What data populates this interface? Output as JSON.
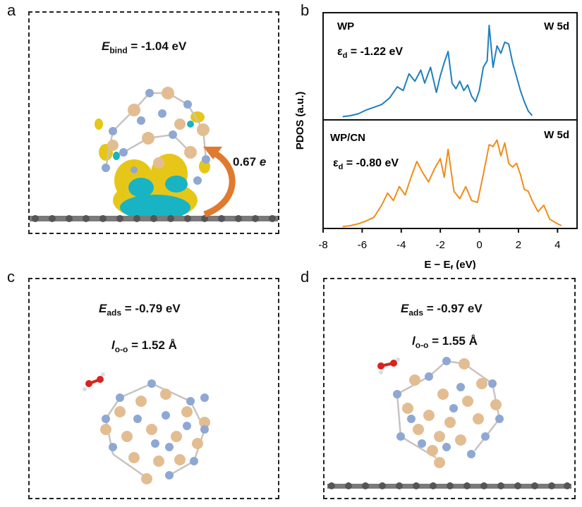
{
  "panels": {
    "a": {
      "letter": "a",
      "energy_symbol": "E",
      "energy_sub": "bind",
      "energy_value": "= -1.04 eV",
      "charge_value": "0.67",
      "charge_unit": "e"
    },
    "b": {
      "letter": "b",
      "top_label": "WP",
      "top_orbital": "W 5d",
      "top_eps_symbol": "ε",
      "top_eps_sub": "d",
      "top_eps_value": "= -1.22 eV",
      "bottom_label": "WP/CN",
      "bottom_orbital": "W 5d",
      "bottom_eps_symbol": "ε",
      "bottom_eps_sub": "d",
      "bottom_eps_value": "= -0.80 eV"
    },
    "c": {
      "letter": "c",
      "energy_symbol": "E",
      "energy_sub": "ads",
      "energy_value": "= -0.79 eV",
      "bond_symbol": "l",
      "bond_sub": "o-o",
      "bond_value": "= 1.52 Å"
    },
    "d": {
      "letter": "d",
      "energy_symbol": "E",
      "energy_sub": "ads",
      "energy_value": "= -0.97 eV",
      "bond_symbol": "l",
      "bond_sub": "o-o",
      "bond_value": "= 1.55 Å"
    }
  },
  "colors": {
    "wp_line": "#1f7fc0",
    "wpcn_line": "#f08c1a",
    "p_atom": "#e3bd92",
    "w_atom": "#8ea8d3",
    "carbon": "#606060",
    "iso_yellow": "#e6c718",
    "iso_cyan": "#19b4c4",
    "arrow": "#e07a2e",
    "oxygen": "#d8231f"
  },
  "chart_data": {
    "type": "line",
    "xlabel": "E − E",
    "xlabel_sub": "f",
    "xlabel_unit": "(eV)",
    "ylabel": "PDOS (a.u.)",
    "xlim": [
      -8,
      5
    ],
    "xticks": [
      -8,
      -6,
      -4,
      -2,
      0,
      2,
      4
    ],
    "series": [
      {
        "name": "WP",
        "x": [
          -7.0,
          -6.6,
          -6.2,
          -5.8,
          -5.4,
          -5.0,
          -4.6,
          -4.2,
          -3.9,
          -3.6,
          -3.3,
          -3.0,
          -2.8,
          -2.5,
          -2.2,
          -2.0,
          -1.8,
          -1.6,
          -1.4,
          -1.2,
          -1.0,
          -0.8,
          -0.6,
          -0.4,
          -0.2,
          0.0,
          0.2,
          0.4,
          0.5,
          0.7,
          0.9,
          1.1,
          1.3,
          1.5,
          1.7,
          1.9,
          2.1,
          2.3,
          2.5,
          2.7
        ],
        "values": [
          0.02,
          0.03,
          0.05,
          0.09,
          0.12,
          0.15,
          0.22,
          0.34,
          0.3,
          0.48,
          0.4,
          0.52,
          0.38,
          0.55,
          0.28,
          0.46,
          0.6,
          0.72,
          0.38,
          0.32,
          0.4,
          0.3,
          0.36,
          0.24,
          0.18,
          0.3,
          0.55,
          0.62,
          1.0,
          0.55,
          0.78,
          0.7,
          0.82,
          0.8,
          0.6,
          0.45,
          0.3,
          0.18,
          0.08,
          0.03
        ]
      },
      {
        "name": "WP/CN",
        "x": [
          -7.0,
          -6.6,
          -6.2,
          -5.8,
          -5.4,
          -5.0,
          -4.7,
          -4.4,
          -4.1,
          -3.8,
          -3.5,
          -3.2,
          -2.9,
          -2.6,
          -2.3,
          -2.0,
          -1.8,
          -1.6,
          -1.3,
          -1.0,
          -0.7,
          -0.4,
          -0.1,
          0.2,
          0.5,
          0.7,
          0.9,
          1.1,
          1.3,
          1.5,
          1.7,
          1.9,
          2.1,
          2.3,
          2.5,
          2.7,
          3.0,
          3.3,
          3.6,
          4.0,
          4.2
        ],
        "values": [
          0.02,
          0.03,
          0.05,
          0.08,
          0.12,
          0.25,
          0.38,
          0.3,
          0.45,
          0.36,
          0.55,
          0.72,
          0.6,
          0.5,
          0.64,
          0.75,
          0.55,
          0.85,
          0.4,
          0.32,
          0.45,
          0.3,
          0.28,
          0.58,
          0.9,
          0.88,
          0.95,
          0.78,
          0.92,
          0.7,
          0.66,
          0.7,
          0.58,
          0.42,
          0.4,
          0.3,
          0.18,
          0.25,
          0.1,
          0.05,
          0.03
        ]
      }
    ]
  }
}
